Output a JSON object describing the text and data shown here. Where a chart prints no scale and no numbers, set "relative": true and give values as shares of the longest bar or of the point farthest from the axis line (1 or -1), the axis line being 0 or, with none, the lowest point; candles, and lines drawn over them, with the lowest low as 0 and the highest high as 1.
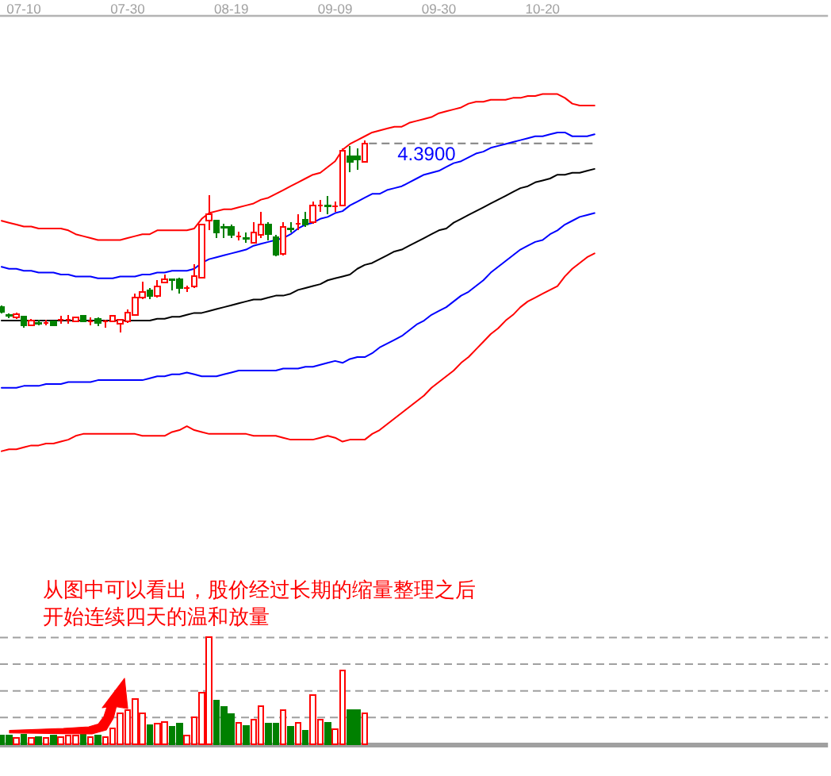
{
  "chart_data": [
    {
      "type": "candlestick",
      "relative": true,
      "categories": [
        null,
        null,
        null,
        "07-10",
        null,
        null,
        null,
        null,
        null,
        null,
        null,
        null,
        null,
        null,
        null,
        null,
        null,
        "07-30",
        null,
        null,
        null,
        null,
        null,
        null,
        null,
        null,
        null,
        null,
        null,
        null,
        null,
        "08-19",
        null,
        null,
        null,
        null,
        null,
        null,
        null,
        null,
        null,
        null,
        null,
        null,
        null,
        "09-09",
        null,
        null,
        null,
        null,
        null,
        null,
        null,
        null,
        null,
        null,
        null,
        null,
        null,
        "09-30",
        null,
        null,
        null,
        null,
        null,
        null,
        null,
        null,
        null,
        null,
        null,
        null,
        null,
        "10-20",
        null,
        null,
        null,
        null,
        null,
        null,
        null,
        null,
        null,
        null,
        null,
        null,
        null,
        null,
        null,
        null,
        null,
        null,
        null,
        null,
        null,
        null,
        null,
        null,
        null,
        null,
        null,
        null,
        null,
        null,
        null,
        null,
        null,
        null,
        null,
        null,
        null,
        null
      ],
      "ohlc": [
        [
          0.13,
          0.14,
          0.099,
          0.106
        ],
        [
          0.088,
          0.099,
          0.073,
          0.084
        ],
        [
          0.078,
          0.102,
          0.069,
          0.093
        ],
        [
          0.082,
          0.086,
          0.022,
          0.035
        ],
        [
          0.035,
          0.069,
          0.032,
          0.061
        ],
        [
          0.048,
          0.063,
          0.035,
          0.045
        ],
        [
          0.05,
          0.063,
          0.035,
          0.05
        ],
        [
          0.058,
          0.061,
          0.032,
          0.035
        ],
        [
          0.063,
          0.084,
          0.045,
          0.063
        ],
        [
          0.063,
          0.091,
          0.043,
          0.063
        ],
        [
          0.056,
          0.082,
          0.052,
          0.078
        ],
        [
          0.086,
          0.089,
          0.056,
          0.058
        ],
        [
          0.058,
          0.078,
          0.035,
          0.058
        ],
        [
          0.069,
          0.078,
          0.03,
          0.05
        ],
        [
          0.056,
          0.063,
          0.022,
          0.056
        ],
        [
          0.056,
          0.088,
          0.052,
          0.084
        ],
        [
          0.043,
          0.067,
          0,
          0.063
        ],
        [
          0.058,
          0.119,
          0.05,
          0.101
        ],
        [
          0.091,
          0.201,
          0.086,
          0.182
        ],
        [
          0.182,
          0.264,
          0.173,
          0.21
        ],
        [
          0.216,
          0.229,
          0.173,
          0.188
        ],
        [
          0.188,
          0.27,
          0.182,
          0.237
        ],
        [
          0.257,
          0.298,
          0.253,
          0.277
        ],
        [
          0.276,
          0.277,
          0.216,
          0.272
        ],
        [
          0.277,
          0.283,
          0.201,
          0.229
        ],
        [
          0.229,
          0.242,
          0.21,
          0.229
        ],
        [
          0.237,
          0.352,
          0.229,
          0.292
        ],
        [
          0.283,
          0.564,
          0.279,
          0.559
        ],
        [
          0.579,
          0.715,
          0.531,
          0.615
        ],
        [
          0.579,
          0.587,
          0.49,
          0.518
        ],
        [
          0.547,
          0.566,
          0.49,
          0.544
        ],
        [
          0.546,
          0.559,
          0.49,
          0.505
        ],
        [
          0.499,
          0.523,
          0.477,
          0.499
        ],
        [
          0.492,
          0.518,
          0.464,
          0.488
        ],
        [
          0.467,
          0.572,
          0.464,
          0.518
        ],
        [
          0.505,
          0.628,
          0.49,
          0.559
        ],
        [
          0.559,
          0.572,
          0.477,
          0.512
        ],
        [
          0.495,
          0.505,
          0.393,
          0.402
        ],
        [
          0.408,
          0.572,
          0.399,
          0.549
        ],
        [
          0.538,
          0.572,
          0.518,
          0.536
        ],
        [
          0.566,
          0.615,
          0.531,
          0.566
        ],
        [
          0.587,
          0.628,
          0.546,
          0.559
        ],
        [
          0.572,
          0.682,
          0.566,
          0.661
        ],
        [
          0.659,
          0.687,
          0.628,
          0.659
        ],
        [
          0.661,
          0.71,
          0.615,
          0.657
        ],
        [
          0.655,
          0.682,
          0.628,
          0.655
        ],
        [
          0.661,
          0.957,
          0.655,
          0.944
        ],
        [
          0.916,
          0.97,
          0.834,
          0.888
        ],
        [
          0.916,
          0.957,
          0.847,
          0.898
        ],
        [
          0.888,
          1,
          0.886,
          0.983
        ],
        null,
        null,
        null,
        null,
        null,
        null,
        null,
        null,
        null,
        null,
        null,
        null,
        null,
        null,
        null,
        null,
        null,
        null,
        null,
        null,
        null,
        null,
        null,
        null,
        null,
        null,
        null,
        null,
        null,
        null,
        null,
        null,
        null,
        null,
        null,
        null,
        null,
        null,
        null,
        null,
        null,
        null,
        null,
        null,
        null,
        null,
        null,
        null,
        null,
        null,
        null,
        null,
        null,
        null,
        null,
        null,
        null,
        null,
        null,
        null,
        null,
        null
      ],
      "colors": [
        "#008000",
        "#008000",
        "#ff0000",
        "#008000",
        "#ff0000",
        "#008000",
        "#ff0000",
        "#008000",
        "#ff0000",
        "#ff0000",
        "#ff0000",
        "#008000",
        "#ff0000",
        "#008000",
        "#ff0000",
        "#ff0000",
        "#ff0000",
        "#ff0000",
        "#ff0000",
        "#ff0000",
        "#008000",
        "#ff0000",
        "#ff0000",
        "#008000",
        "#008000",
        "#ff0000",
        "#ff0000",
        "#ff0000",
        "#ff0000",
        "#008000",
        "#008000",
        "#008000",
        "#ff0000",
        "#008000",
        "#ff0000",
        "#ff0000",
        "#008000",
        "#008000",
        "#ff0000",
        "#008000",
        "#ff0000",
        "#008000",
        "#ff0000",
        "#ff0000",
        "#008000",
        "#ff0000",
        "#ff0000",
        "#008000",
        "#008000",
        "#ff0000",
        null,
        null,
        null,
        null,
        null,
        null,
        null,
        null,
        null,
        null,
        null,
        null,
        null,
        null,
        null,
        null,
        null,
        null,
        null,
        null,
        null,
        null,
        null,
        null,
        null,
        null,
        null,
        null,
        null,
        null,
        null,
        null,
        null,
        null,
        null,
        null,
        null,
        null,
        null,
        null,
        null,
        null,
        null,
        null,
        null,
        null,
        null,
        null,
        null,
        null,
        null,
        null,
        null,
        null,
        null,
        null,
        null,
        null,
        null,
        null,
        null,
        null
      ],
      "series": [
        {
          "type": "line",
          "color": "#ff0000",
          "values": [
            0.58,
            0.57,
            0.56,
            0.55,
            0.55,
            0.54,
            0.54,
            0.54,
            0.54,
            0.53,
            0.51,
            0.5,
            0.49,
            0.48,
            0.48,
            0.48,
            0.48,
            0.49,
            0.5,
            0.51,
            0.51,
            0.53,
            0.53,
            0.53,
            0.53,
            0.53,
            0.54,
            0.59,
            0.62,
            0.63,
            0.64,
            0.64,
            0.65,
            0.66,
            0.67,
            0.69,
            0.7,
            0.72,
            0.74,
            0.76,
            0.78,
            0.8,
            0.82,
            0.83,
            0.86,
            0.89,
            0.95,
            0.98,
            1.0,
            1.02,
            1.04,
            1.05,
            1.06,
            1.07,
            1.07,
            1.09,
            1.1,
            1.11,
            1.12,
            1.14,
            1.15,
            1.16,
            1.17,
            1.19,
            1.2,
            1.2,
            1.21,
            1.21,
            1.21,
            1.22,
            1.22,
            1.23,
            1.23,
            1.24,
            1.24,
            1.24,
            1.22,
            1.19,
            1.18,
            1.18,
            1.18,
            null,
            null,
            null,
            null,
            null,
            null,
            null,
            null,
            null,
            null,
            null,
            null,
            null,
            null,
            null,
            null,
            null,
            null,
            null,
            null,
            null,
            null,
            null,
            null,
            null,
            null,
            null,
            null,
            null,
            null,
            null
          ]
        },
        {
          "type": "line",
          "color": "#0000ff",
          "values": [
            0.34,
            0.33,
            0.33,
            0.32,
            0.32,
            0.31,
            0.31,
            0.31,
            0.3,
            0.3,
            0.29,
            0.29,
            0.29,
            0.28,
            0.28,
            0.28,
            0.29,
            0.29,
            0.29,
            0.3,
            0.3,
            0.31,
            0.31,
            0.32,
            0.32,
            0.32,
            0.33,
            0.36,
            0.38,
            0.39,
            0.4,
            0.41,
            0.42,
            0.43,
            0.45,
            0.46,
            0.47,
            0.48,
            0.49,
            0.51,
            0.54,
            0.56,
            0.57,
            0.59,
            0.6,
            0.62,
            0.63,
            0.66,
            0.68,
            0.7,
            0.72,
            0.72,
            0.74,
            0.75,
            0.76,
            0.78,
            0.8,
            0.82,
            0.83,
            0.84,
            0.86,
            0.88,
            0.89,
            0.91,
            0.93,
            0.94,
            0.96,
            0.97,
            0.98,
            0.99,
            1.0,
            1.01,
            1.02,
            1.02,
            1.03,
            1.04,
            1.04,
            1.02,
            1.02,
            1.02,
            1.03,
            null,
            null,
            null,
            null,
            null,
            null,
            null,
            null,
            null,
            null,
            null,
            null,
            null,
            null,
            null,
            null,
            null,
            null,
            null,
            null,
            null,
            null,
            null,
            null,
            null,
            null,
            null,
            null,
            null,
            null,
            null
          ]
        },
        {
          "type": "line",
          "color": "#000000",
          "values": [
            0.06,
            0.06,
            0.06,
            0.06,
            0.06,
            0.06,
            0.06,
            0.06,
            0.06,
            0.06,
            0.06,
            0.06,
            0.06,
            0.06,
            0.06,
            0.06,
            0.06,
            0.06,
            0.06,
            0.06,
            0.06,
            0.07,
            0.07,
            0.08,
            0.08,
            0.09,
            0.1,
            0.1,
            0.11,
            0.12,
            0.13,
            0.14,
            0.15,
            0.16,
            0.17,
            0.17,
            0.18,
            0.19,
            0.19,
            0.2,
            0.22,
            0.23,
            0.24,
            0.25,
            0.27,
            0.28,
            0.29,
            0.3,
            0.33,
            0.35,
            0.36,
            0.38,
            0.4,
            0.42,
            0.43,
            0.45,
            0.47,
            0.49,
            0.51,
            0.53,
            0.54,
            0.57,
            0.59,
            0.61,
            0.63,
            0.65,
            0.67,
            0.69,
            0.71,
            0.73,
            0.75,
            0.76,
            0.78,
            0.79,
            0.8,
            0.82,
            0.82,
            0.83,
            0.83,
            0.84,
            0.85,
            null,
            null,
            null,
            null,
            null,
            null,
            null,
            null,
            null,
            null,
            null,
            null,
            null,
            null,
            null,
            null,
            null,
            null,
            null,
            null,
            null,
            null,
            null,
            null,
            null,
            null,
            null,
            null,
            null,
            null,
            null
          ]
        },
        {
          "type": "line",
          "color": "#0000ff",
          "values": [
            -0.29,
            -0.29,
            -0.29,
            -0.28,
            -0.28,
            -0.28,
            -0.27,
            -0.27,
            -0.27,
            -0.26,
            -0.26,
            -0.26,
            -0.26,
            -0.25,
            -0.25,
            -0.25,
            -0.25,
            -0.25,
            -0.25,
            -0.25,
            -0.24,
            -0.23,
            -0.23,
            -0.22,
            -0.22,
            -0.21,
            -0.22,
            -0.23,
            -0.23,
            -0.23,
            -0.22,
            -0.21,
            -0.2,
            -0.2,
            -0.2,
            -0.2,
            -0.2,
            -0.2,
            -0.19,
            -0.19,
            -0.19,
            -0.18,
            -0.18,
            -0.17,
            -0.16,
            -0.15,
            -0.16,
            -0.14,
            -0.13,
            -0.13,
            -0.11,
            -0.08,
            -0.06,
            -0.04,
            -0.02,
            0.01,
            0.04,
            0.06,
            0.09,
            0.11,
            0.13,
            0.16,
            0.19,
            0.21,
            0.24,
            0.27,
            0.31,
            0.34,
            0.37,
            0.4,
            0.43,
            0.45,
            0.47,
            0.48,
            0.51,
            0.53,
            0.56,
            0.58,
            0.6,
            0.61,
            0.62,
            null,
            null,
            null,
            null,
            null,
            null,
            null,
            null,
            null,
            null,
            null,
            null,
            null,
            null,
            null,
            null,
            null,
            null,
            null,
            null,
            null,
            null,
            null,
            null,
            null,
            null,
            null,
            null,
            null,
            null,
            null
          ]
        },
        {
          "type": "line",
          "color": "#ff0000",
          "values": [
            -0.62,
            -0.61,
            -0.61,
            -0.6,
            -0.59,
            -0.59,
            -0.58,
            -0.58,
            -0.57,
            -0.56,
            -0.54,
            -0.53,
            -0.53,
            -0.53,
            -0.53,
            -0.53,
            -0.53,
            -0.53,
            -0.53,
            -0.54,
            -0.54,
            -0.54,
            -0.54,
            -0.52,
            -0.51,
            -0.49,
            -0.51,
            -0.52,
            -0.53,
            -0.53,
            -0.53,
            -0.53,
            -0.53,
            -0.53,
            -0.54,
            -0.54,
            -0.54,
            -0.54,
            -0.55,
            -0.56,
            -0.56,
            -0.56,
            -0.56,
            -0.55,
            -0.54,
            -0.55,
            -0.57,
            -0.56,
            -0.56,
            -0.56,
            -0.53,
            -0.51,
            -0.48,
            -0.45,
            -0.42,
            -0.39,
            -0.36,
            -0.33,
            -0.29,
            -0.26,
            -0.23,
            -0.2,
            -0.16,
            -0.13,
            -0.09,
            -0.05,
            -0.01,
            0.02,
            0.06,
            0.09,
            0.13,
            0.16,
            0.18,
            0.2,
            0.22,
            0.24,
            0.29,
            0.33,
            0.36,
            0.39,
            0.41,
            null,
            null,
            null,
            null,
            null,
            null,
            null,
            null,
            null,
            null,
            null,
            null,
            null,
            null,
            null,
            null,
            null,
            null,
            null,
            null,
            null,
            null,
            null,
            null,
            null,
            null,
            null,
            null,
            null,
            null,
            null
          ]
        }
      ],
      "ref_lines": [
        {
          "axis": "y",
          "value": 0.983,
          "color": "#808080",
          "line_style": "dashed"
        }
      ],
      "annotations": [
        "4.3900"
      ]
    },
    {
      "type": "bar",
      "relative": true,
      "categories": [
        null,
        null,
        null,
        null,
        null,
        null,
        null,
        null,
        null,
        null,
        null,
        null,
        null,
        null,
        null,
        null,
        null,
        null,
        null,
        null,
        null,
        null,
        null,
        null,
        null,
        null,
        null,
        null,
        null,
        null,
        null,
        null,
        null,
        null,
        null,
        null,
        null,
        null,
        null,
        null,
        null,
        null,
        null,
        null,
        null,
        null,
        null,
        null,
        null,
        null,
        null,
        null,
        null,
        null,
        null,
        null,
        null,
        null,
        null,
        null,
        null,
        null,
        null,
        null,
        null,
        null,
        null,
        null,
        null,
        null,
        null,
        null,
        null,
        null,
        null,
        null,
        null,
        null,
        null,
        null,
        null,
        null,
        null,
        null,
        null,
        null,
        null,
        null,
        null,
        null,
        null,
        null,
        null,
        null,
        null,
        null,
        null,
        null,
        null,
        null,
        null,
        null,
        null,
        null,
        null,
        null,
        null,
        null,
        null,
        null,
        null,
        null
      ],
      "values": [
        0.08,
        0.08,
        0.06,
        0.09,
        0.06,
        0.07,
        0.06,
        0.08,
        0.07,
        0.08,
        0.08,
        0.09,
        0.07,
        0.08,
        0.07,
        0.15,
        0.29,
        0.32,
        0.42,
        0.29,
        0.18,
        0.19,
        0.21,
        0.16,
        0.19,
        0.08,
        0.25,
        0.48,
        1,
        0.41,
        0.35,
        0.28,
        0.2,
        0.17,
        0.23,
        0.36,
        0.19,
        0.19,
        0.32,
        0.16,
        0.2,
        0.13,
        0.46,
        0.23,
        0.2,
        0.14,
        0.69,
        0.32,
        0.32,
        0.29,
        null,
        null,
        null,
        null,
        null,
        null,
        null,
        null,
        null,
        null,
        null,
        null,
        null,
        null,
        null,
        null,
        null,
        null,
        null,
        null,
        null,
        null,
        null,
        null,
        null,
        null,
        null,
        null,
        null,
        null,
        null,
        null,
        null,
        null,
        null,
        null,
        null,
        null,
        null,
        null,
        null,
        null,
        null,
        null,
        null,
        null,
        null,
        null,
        null,
        null,
        null,
        null,
        null,
        null,
        null,
        null,
        null,
        null,
        null,
        null,
        null,
        null
      ],
      "colors": [
        "#008000",
        "#008000",
        "#ff0000",
        "#008000",
        "#ff0000",
        "#008000",
        "#ff0000",
        "#008000",
        "#ff0000",
        "#ff0000",
        "#ff0000",
        "#008000",
        "#ff0000",
        "#008000",
        "#ff0000",
        "#ff0000",
        "#ff0000",
        "#ff0000",
        "#ff0000",
        "#ff0000",
        "#008000",
        "#ff0000",
        "#ff0000",
        "#008000",
        "#008000",
        "#ff0000",
        "#ff0000",
        "#ff0000",
        "#ff0000",
        "#008000",
        "#008000",
        "#008000",
        "#ff0000",
        "#008000",
        "#ff0000",
        "#ff0000",
        "#008000",
        "#008000",
        "#ff0000",
        "#008000",
        "#ff0000",
        "#008000",
        "#ff0000",
        "#ff0000",
        "#008000",
        "#ff0000",
        "#ff0000",
        "#008000",
        "#008000",
        "#ff0000",
        null,
        null,
        null,
        null,
        null,
        null,
        null,
        null,
        null,
        null,
        null,
        null,
        null,
        null,
        null,
        null,
        null,
        null,
        null,
        null,
        null,
        null,
        null,
        null,
        null,
        null,
        null,
        null,
        null,
        null,
        null,
        null,
        null,
        null,
        null,
        null,
        null,
        null,
        null,
        null,
        null,
        null,
        null,
        null,
        null,
        null,
        null,
        null,
        null,
        null,
        null,
        null,
        null,
        null,
        null,
        null,
        null,
        null,
        null,
        null,
        null,
        null
      ],
      "ref_lines": [
        {
          "axis": "y",
          "value": 0.25,
          "color": "#a0a0a0",
          "line_style": "dashed"
        },
        {
          "axis": "y",
          "value": 0.5,
          "color": "#a0a0a0",
          "line_style": "dashed"
        },
        {
          "axis": "y",
          "value": 0.75,
          "color": "#a0a0a0",
          "line_style": "dashed"
        },
        {
          "axis": "y",
          "value": 1,
          "color": "#a0a0a0",
          "line_style": "dashed"
        }
      ],
      "annotations": [
        "从图中可以看出，股价经过长期的缩量整理之后",
        "开始连续四天的温和放量"
      ]
    }
  ]
}
